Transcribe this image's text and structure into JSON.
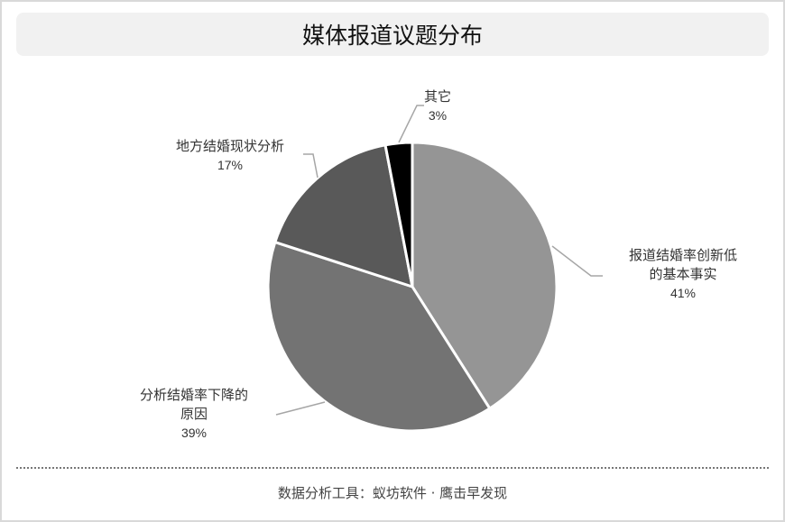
{
  "title": "媒体报道议题分布",
  "footer": "数据分析工具：蚁坊软件 · 鹰击早发现",
  "chart_data": {
    "type": "pie",
    "title": "媒体报道议题分布",
    "start": "top, clockwise",
    "slices": [
      {
        "label": "报道结婚率创新低的基本事实",
        "label_lines": [
          "报道结婚率创新低",
          "的基本事实"
        ],
        "value": 41,
        "display": "41%",
        "color": "#959595"
      },
      {
        "label": "分析结婚率下降的原因",
        "label_lines": [
          "分析结婚率下降的",
          "原因"
        ],
        "value": 39,
        "display": "39%",
        "color": "#737373"
      },
      {
        "label": "地方结婚现状分析",
        "label_lines": [
          "地方结婚现状分析"
        ],
        "value": 17,
        "display": "17%",
        "color": "#595959"
      },
      {
        "label": "其它",
        "label_lines": [
          "其它"
        ],
        "value": 3,
        "display": "3%",
        "color": "#000000"
      }
    ]
  }
}
